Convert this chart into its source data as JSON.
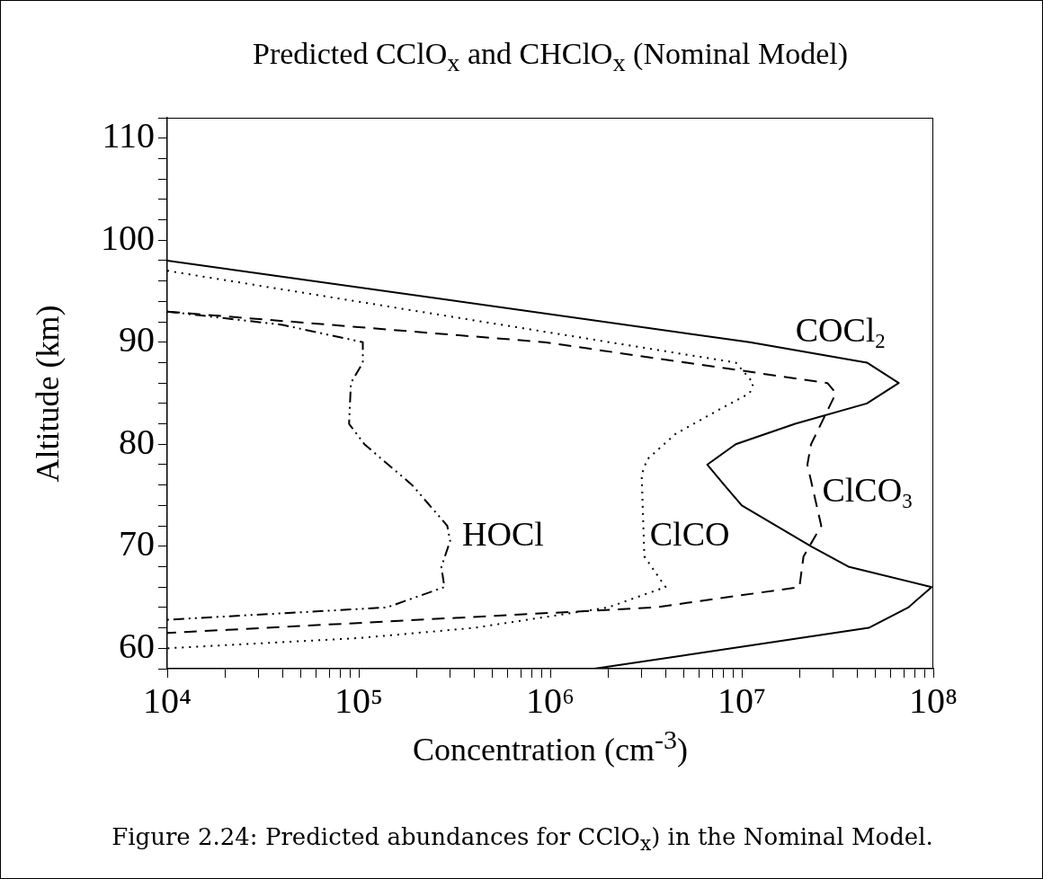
{
  "chart_data": {
    "type": "line",
    "title": "Predicted CClO$_{x}$ and CHClO$_{x}$ (Nominal Model)",
    "xlabel": "Concentration (cm$^{-3}$)",
    "ylabel": "Altitude (km)",
    "log": "x",
    "marker": "none",
    "legend": false,
    "grid": false,
    "xlim": [
      10000,
      100000000
    ],
    "xticks": [
      {
        "value": 10000,
        "label": "10⁴"
      },
      {
        "value": 20000,
        "label": null
      },
      {
        "value": 30000,
        "label": null
      },
      {
        "value": 40000,
        "label": null
      },
      {
        "value": 50000,
        "label": null
      },
      {
        "value": 60000,
        "label": null
      },
      {
        "value": 70000,
        "label": null
      },
      {
        "value": 80000,
        "label": null
      },
      {
        "value": 90000,
        "label": null
      },
      {
        "value": 100000,
        "label": "10⁵"
      },
      {
        "value": 200000,
        "label": null
      },
      {
        "value": 300000,
        "label": null
      },
      {
        "value": 400000,
        "label": null
      },
      {
        "value": 500000,
        "label": null
      },
      {
        "value": 600000,
        "label": null
      },
      {
        "value": 700000,
        "label": null
      },
      {
        "value": 800000,
        "label": null
      },
      {
        "value": 900000,
        "label": null
      },
      {
        "value": 1000000,
        "label": "10⁶"
      },
      {
        "value": 2000000,
        "label": null
      },
      {
        "value": 3000000,
        "label": null
      },
      {
        "value": 4000000,
        "label": null
      },
      {
        "value": 5000000,
        "label": null
      },
      {
        "value": 6000000,
        "label": null
      },
      {
        "value": 7000000,
        "label": null
      },
      {
        "value": 8000000,
        "label": null
      },
      {
        "value": 9000000,
        "label": null
      },
      {
        "value": 10000000,
        "label": "10⁷"
      },
      {
        "value": 20000000,
        "label": null
      },
      {
        "value": 30000000,
        "label": null
      },
      {
        "value": 40000000,
        "label": null
      },
      {
        "value": 50000000,
        "label": null
      },
      {
        "value": 60000000,
        "label": null
      },
      {
        "value": 70000000,
        "label": null
      },
      {
        "value": 80000000,
        "label": null
      },
      {
        "value": 90000000,
        "label": null
      },
      {
        "value": 100000000,
        "label": "10⁸"
      }
    ],
    "ylim": [
      58,
      112
    ],
    "yticks": [
      {
        "value": 58,
        "label": null
      },
      60,
      {
        "value": 62,
        "label": null
      },
      {
        "value": 64,
        "label": null
      },
      {
        "value": 66,
        "label": null
      },
      {
        "value": 68,
        "label": null
      },
      70,
      {
        "value": 72,
        "label": null
      },
      {
        "value": 74,
        "label": null
      },
      {
        "value": 76,
        "label": null
      },
      {
        "value": 78,
        "label": null
      },
      80,
      {
        "value": 82,
        "label": null
      },
      {
        "value": 84,
        "label": null
      },
      {
        "value": 86,
        "label": null
      },
      {
        "value": 88,
        "label": null
      },
      90,
      {
        "value": 92,
        "label": null
      },
      {
        "value": 94,
        "label": null
      },
      {
        "value": 96,
        "label": null
      },
      {
        "value": 98,
        "label": null
      },
      100,
      {
        "value": 102,
        "label": null
      },
      {
        "value": 104,
        "label": null
      },
      {
        "value": 106,
        "label": null
      },
      {
        "value": 108,
        "label": null
      },
      110,
      {
        "value": 112,
        "label": null
      }
    ],
    "series": [
      {
        "name": "COCl$_{2}$",
        "color": "#000000",
        "line_style": "solid",
        "x": [
          10000,
          11000000,
          45000000,
          66000000,
          45000000,
          19000000,
          9300000,
          6600000,
          8100000,
          10000000,
          23000000,
          36000000,
          98000000,
          74000000,
          46000000,
          1700000
        ],
        "values": [
          98,
          90,
          88,
          86,
          84,
          82,
          80,
          78,
          76,
          74,
          70,
          68,
          66,
          64,
          62,
          58
        ]
      },
      {
        "name": "ClCO",
        "color": "#000000",
        "line_style": "dotted",
        "x": [
          10000,
          9300000,
          11500000,
          11000000,
          7800000,
          4500000,
          3200000,
          3000000,
          3100000,
          4000000,
          2000000,
          400000,
          100000,
          10000
        ],
        "values": [
          97,
          88,
          86,
          85,
          83.5,
          81,
          78.5,
          77,
          69,
          66,
          64,
          62,
          61,
          60
        ]
      },
      {
        "name": "ClCO$_{3}$",
        "color": "#000000",
        "line_style": "dashed",
        "x": [
          10000,
          930000,
          28000000,
          31000000,
          23000000,
          22000000,
          26000000,
          21000000,
          20000000,
          3500000,
          10000
        ],
        "values": [
          93,
          90,
          86,
          85,
          80,
          78,
          72,
          69,
          66,
          64,
          61.5
        ]
      },
      {
        "name": "HOCl",
        "color": "#000000",
        "line_style": "dashdot",
        "x": [
          10000,
          40000,
          105000,
          105000,
          91000,
          89000,
          107000,
          190000,
          290000,
          300000,
          270000,
          280000,
          140000,
          10000
        ],
        "values": [
          93,
          91.7,
          90,
          88,
          86,
          82,
          80,
          76,
          72,
          70.5,
          68,
          66,
          64,
          62.8
        ]
      }
    ],
    "annotations": [
      "Figure 2.24: Predicted abundances for CClO$_{x}$) in the Nominal Model."
    ]
  }
}
